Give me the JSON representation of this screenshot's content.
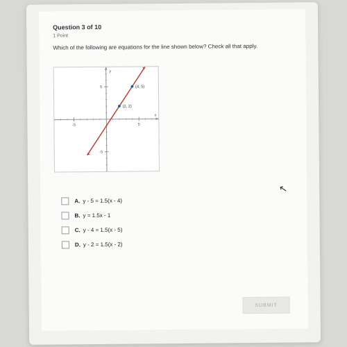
{
  "header": {
    "title": "Question 3 of 10",
    "points": "1 Point"
  },
  "prompt": "Which of the following are equations for the line shown below? Check all that apply.",
  "chart": {
    "type": "line",
    "xlim": [
      -8,
      8
    ],
    "ylim": [
      -8,
      8
    ],
    "xtick_major": [
      -5,
      5
    ],
    "ytick_major": [
      -5,
      5
    ],
    "xlabel": "x",
    "ylabel": "y",
    "axis_color": "#888888",
    "grid_color": "#dddddd",
    "tick_fontsize": 6,
    "border_color": "#cccccc",
    "background_color": "#ffffff",
    "line": {
      "points_data": [
        [
          -3,
          -5.5
        ],
        [
          6,
          8
        ]
      ],
      "color": "#c0392b",
      "width": 1.5
    },
    "marked_points": [
      {
        "xy": [
          4,
          5
        ],
        "label": "(4, 5)",
        "color": "#006699"
      },
      {
        "xy": [
          2,
          2
        ],
        "label": "(2, 2)",
        "color": "#006699"
      }
    ],
    "point_label_fontsize": 6
  },
  "options": [
    {
      "letter": "A.",
      "text": "y - 5 = 1.5(x - 4)",
      "checked": false
    },
    {
      "letter": "B.",
      "text": "y = 1.5x - 1",
      "checked": false
    },
    {
      "letter": "C.",
      "text": "y - 4 = 1.5(x - 5)",
      "checked": false
    },
    {
      "letter": "D.",
      "text": "y - 2 = 1.5(x - 2)",
      "checked": false
    }
  ],
  "submit_label": "SUBMIT",
  "colors": {
    "page_bg": "#d8d8d4",
    "paper_bg": "#fbfbfa",
    "text": "#333333",
    "muted": "#666666",
    "checkbox_border": "#999999",
    "submit_bg": "#e8e8e6",
    "submit_text": "#aaaaaa"
  }
}
